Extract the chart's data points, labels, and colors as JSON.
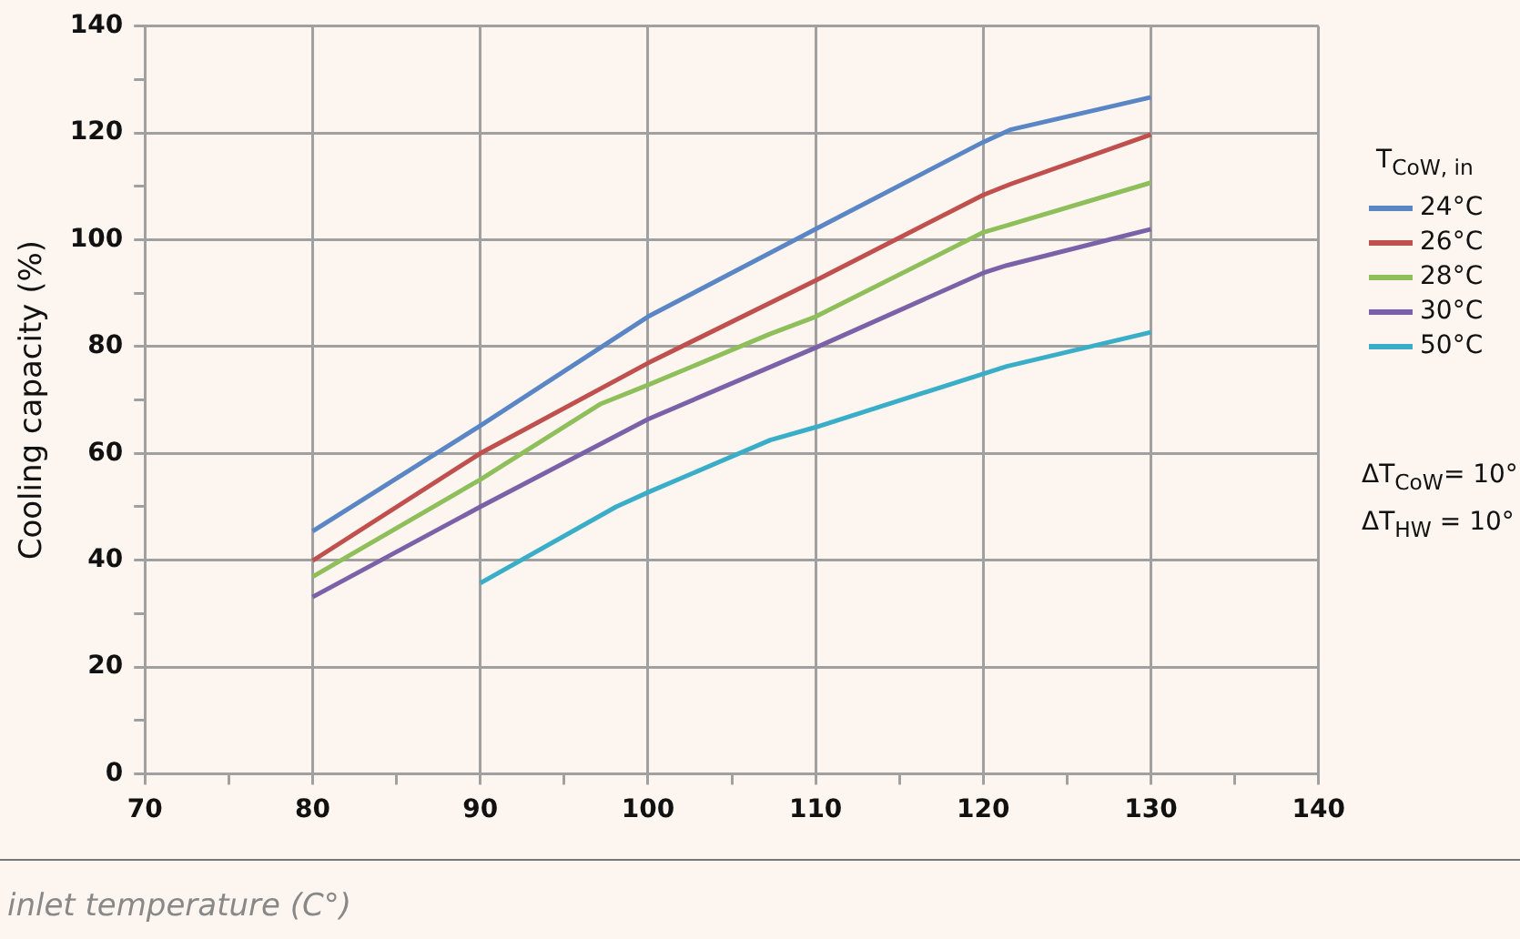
{
  "chart_data": {
    "type": "line",
    "ylabel": "Cooling capacity (%)",
    "xlabel": "inlet temperature (C°)",
    "legend_title": "T$_{CoW, in}$",
    "legend": "right",
    "grid": true,
    "marker": "none",
    "line_style": "solid",
    "xlim": [
      70,
      140
    ],
    "xticks": [
      70,
      {
        "value": 75,
        "label": null
      },
      80,
      {
        "value": 85,
        "label": null
      },
      90,
      {
        "value": 95,
        "label": null
      },
      100,
      {
        "value": 105,
        "label": null
      },
      110,
      {
        "value": 115,
        "label": null
      },
      120,
      {
        "value": 125,
        "label": null
      },
      130,
      {
        "value": 135,
        "label": null
      },
      140
    ],
    "ylim": [
      0,
      140
    ],
    "yticks": [
      0,
      {
        "value": 10,
        "label": null
      },
      20,
      {
        "value": 30,
        "label": null
      },
      40,
      {
        "value": 50,
        "label": null
      },
      60,
      {
        "value": 70,
        "label": null
      },
      80,
      {
        "value": 90,
        "label": null
      },
      100,
      {
        "value": 110,
        "label": null
      },
      120,
      {
        "value": 130,
        "label": null
      },
      140
    ],
    "annotations": [
      "ΔT$_{CoW}$= 10°",
      "ΔT$_{HW}$ = 10°"
    ],
    "series": [
      {
        "name": "24°C",
        "color": "#5a86c5",
        "x": [
          80,
          90,
          100,
          110,
          120,
          121.6,
          130
        ],
        "values": [
          45.4,
          65.2,
          85.6,
          102,
          118.3,
          120.6,
          126.7
        ]
      },
      {
        "name": "26°C",
        "color": "#c0504d",
        "x": [
          80,
          90,
          100,
          110,
          120,
          121.6,
          130
        ],
        "values": [
          39.9,
          60,
          76.9,
          92.4,
          108.4,
          110.4,
          119.7
        ]
      },
      {
        "name": "28°C",
        "color": "#8fbf5a",
        "x": [
          80,
          90,
          97.2,
          100,
          107.3,
          110,
          120,
          121.3,
          130
        ],
        "values": [
          36.9,
          55.1,
          69.3,
          72.8,
          82.4,
          85.6,
          101.4,
          102.6,
          110.7
        ]
      },
      {
        "name": "30°C",
        "color": "#7b62a8",
        "x": [
          80,
          90,
          100,
          110,
          120,
          121.4,
          130
        ],
        "values": [
          33.1,
          50,
          66.4,
          79.8,
          93.8,
          95.2,
          102
        ]
      },
      {
        "name": "50°C",
        "color": "#3aaec8",
        "x": [
          90,
          98.1,
          100,
          107.3,
          110,
          120,
          121.4,
          130
        ],
        "values": [
          35.7,
          50,
          52.7,
          62.5,
          64.9,
          74.9,
          76.3,
          82.7
        ]
      }
    ]
  }
}
